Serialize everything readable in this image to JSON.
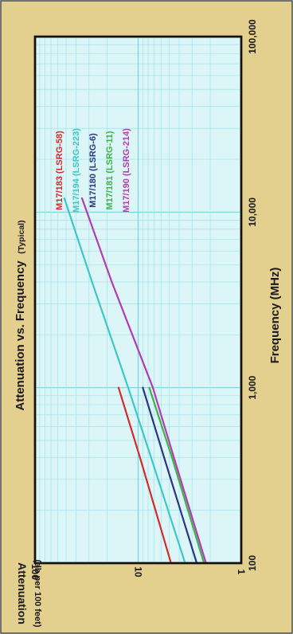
{
  "chart_data": {
    "type": "line",
    "title": "Attenuation vs. Frequency",
    "title_suffix": "(Typical)",
    "xlabel": "Frequency (MHz)",
    "ylabel": "Attenuation",
    "ylabel_sub": "(db per 100 feet)",
    "x_scale": "log",
    "y_scale": "log",
    "xlim": [
      100,
      100000
    ],
    "ylim": [
      1,
      100
    ],
    "x_ticks": [
      "100",
      "1,000",
      "10,000",
      "100,000"
    ],
    "y_ticks": [
      "1",
      "10",
      "100"
    ],
    "grid": true,
    "legend_position": "top-right",
    "series": [
      {
        "name": "M17/183",
        "alias": "(LSRG-58)",
        "color": "#d42a2a",
        "points": [
          [
            100,
            4.8
          ],
          [
            400,
            9.6
          ],
          [
            1000,
            15.5
          ]
        ]
      },
      {
        "name": "M17/194",
        "alias": "(LSRG-223)",
        "color": "#3cc8c8",
        "points": [
          [
            100,
            3.5
          ],
          [
            400,
            7.5
          ],
          [
            1000,
            12.5
          ],
          [
            4000,
            28
          ],
          [
            12000,
            52
          ]
        ]
      },
      {
        "name": "M17/180",
        "alias": "(LSRG-6)",
        "color": "#2a3580",
        "points": [
          [
            100,
            2.7
          ],
          [
            400,
            5.6
          ],
          [
            1000,
            9
          ]
        ]
      },
      {
        "name": "M17/181",
        "alias": "(LSRG-11)",
        "color": "#40b048",
        "points": [
          [
            100,
            2.3
          ],
          [
            400,
            4.7
          ],
          [
            1000,
            7.8
          ]
        ]
      },
      {
        "name": "M17/190",
        "alias": "(LSRG-214)",
        "color": "#b43ab4",
        "points": [
          [
            100,
            2.2
          ],
          [
            400,
            4.5
          ],
          [
            1000,
            7.2
          ],
          [
            4000,
            18
          ],
          [
            12000,
            35
          ]
        ]
      }
    ]
  },
  "colors": {
    "frame_background": "#e3cf8e",
    "plot_background": "#dcf6f8",
    "grid_minor": "#a8e4ee",
    "grid_major": "#7ad2e2"
  }
}
